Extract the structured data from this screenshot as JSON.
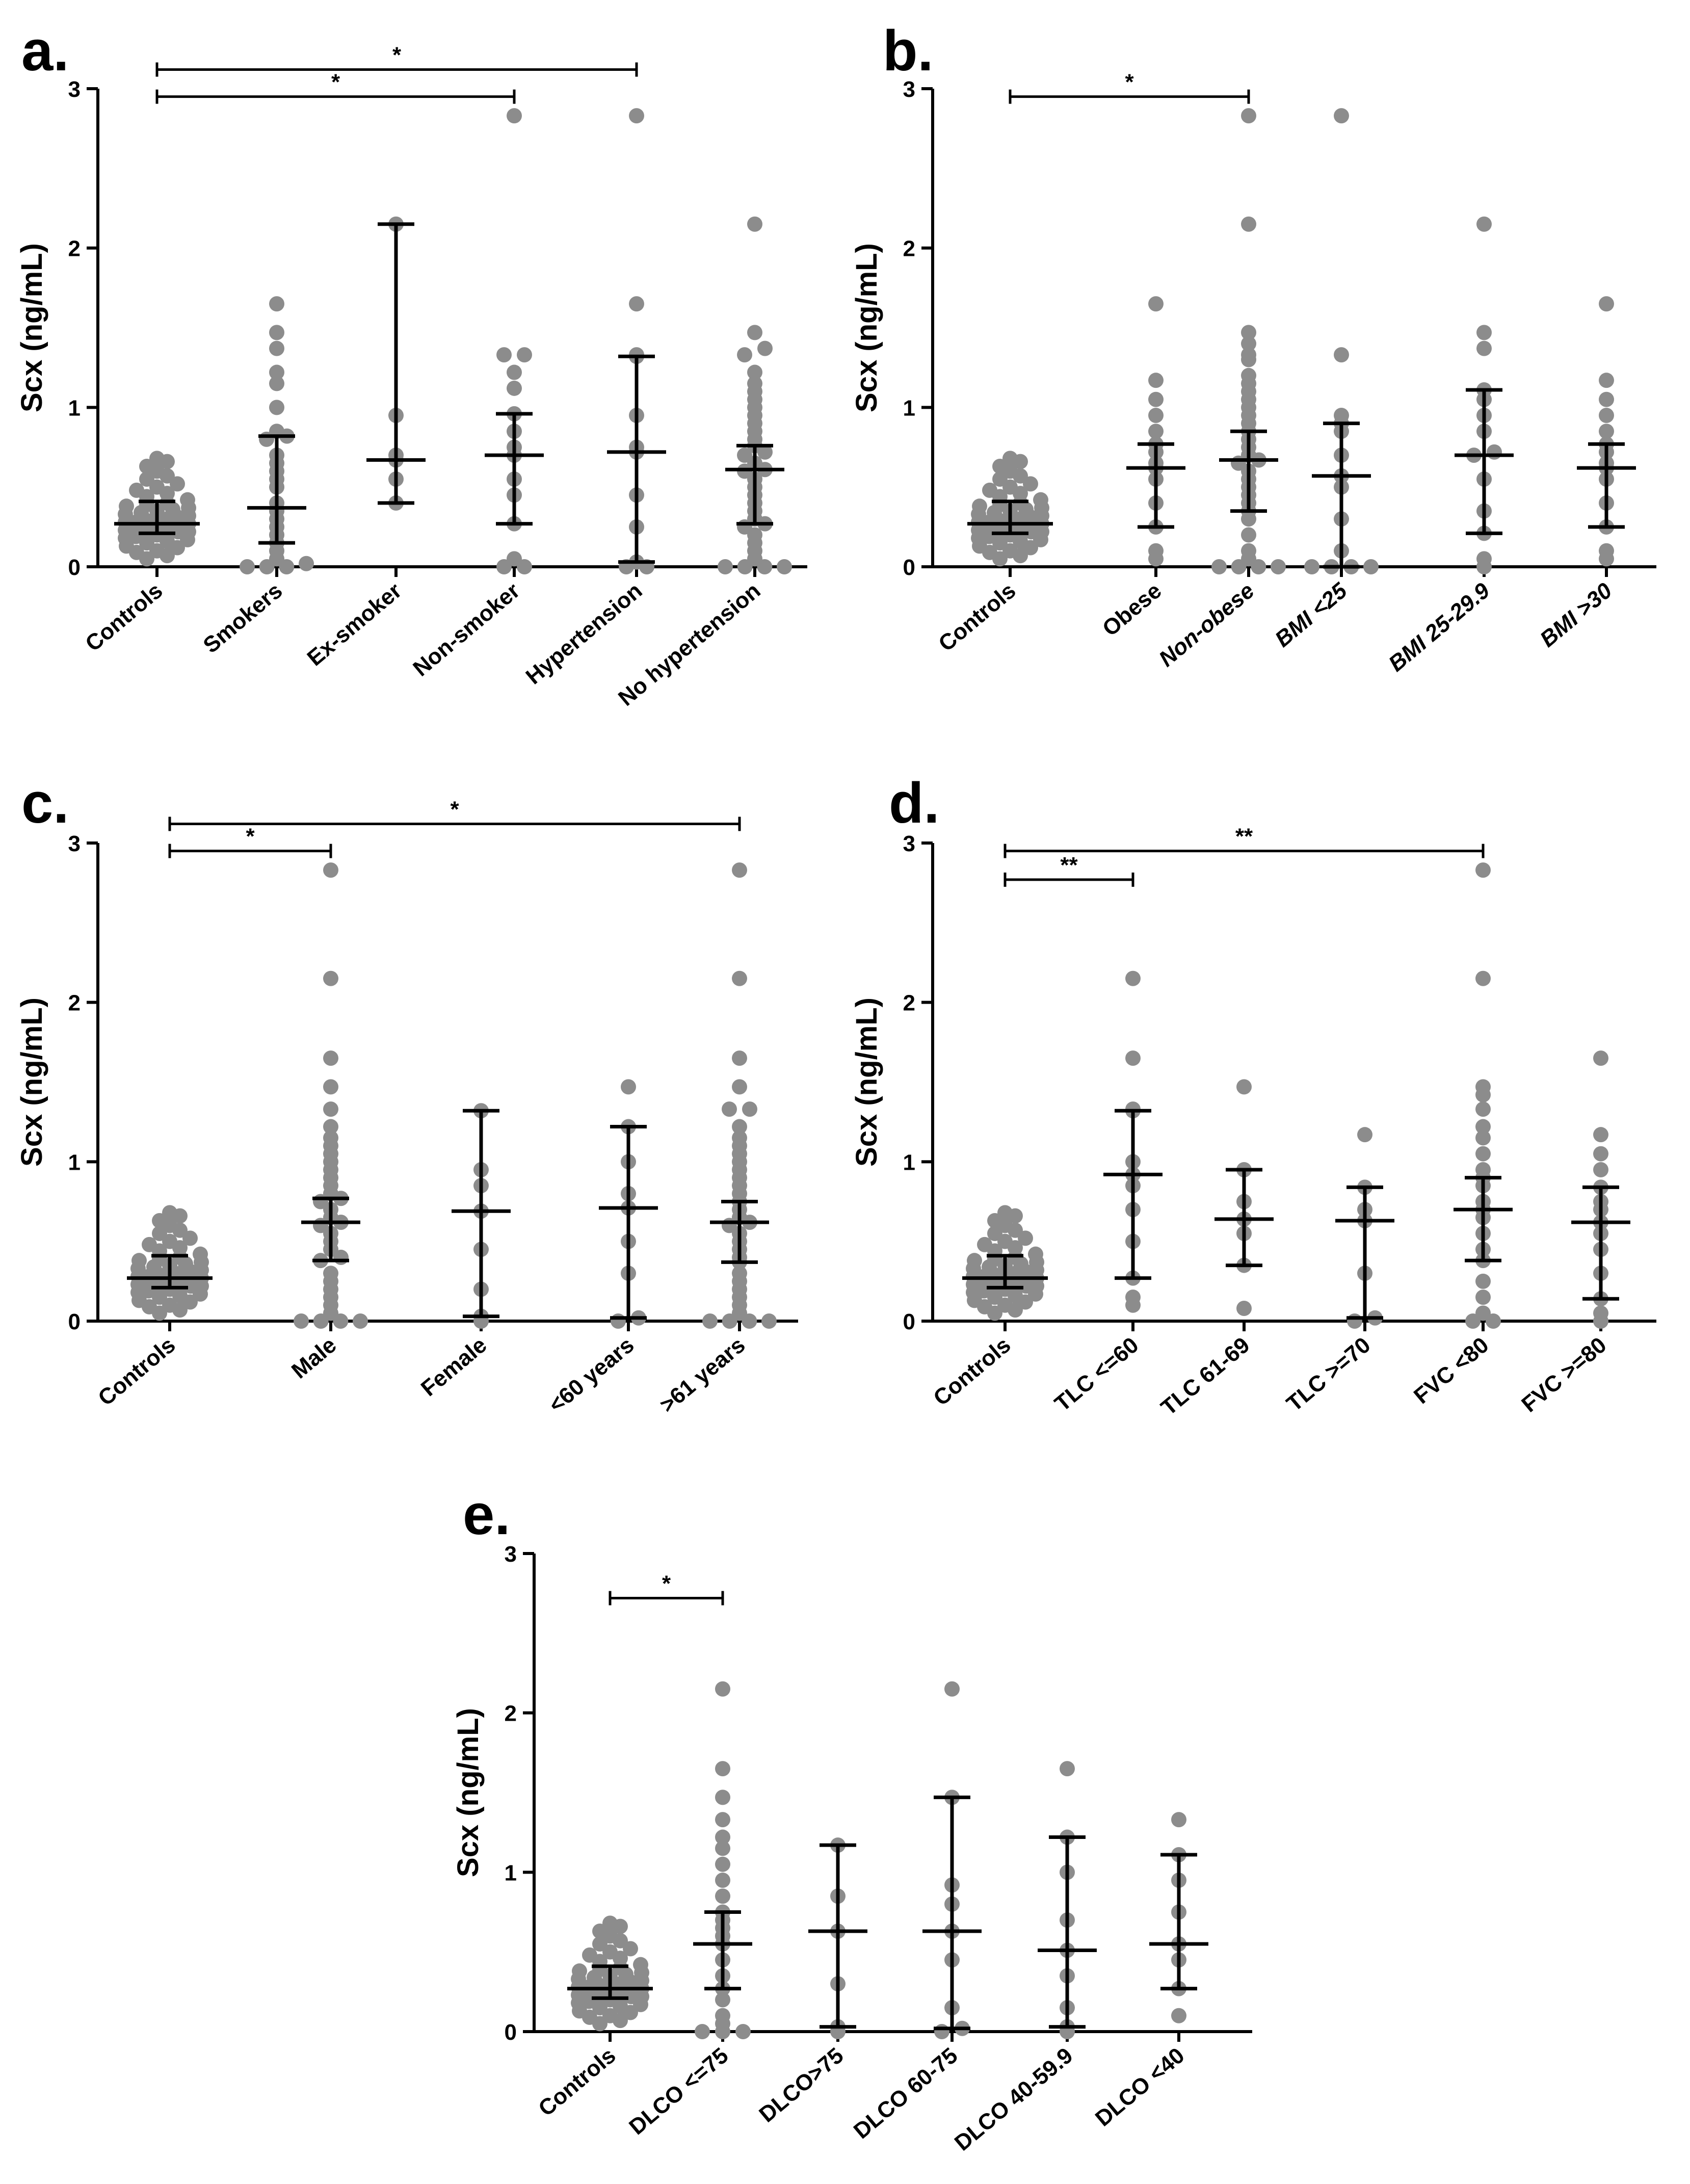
{
  "chart_data": [
    {
      "panel": "a.",
      "type": "scatter",
      "ylabel": "Scx (ng/mL)",
      "ylim": [
        0,
        3
      ],
      "yticks": [
        "0",
        "1",
        "2",
        "3"
      ],
      "categories": [
        "Controls",
        "Smokers",
        "Ex-smoker",
        "Non-smoker",
        "Hypertension",
        "No hypertension"
      ],
      "italic_categories": [],
      "series": [
        {
          "name": "Controls",
          "median": 0.27,
          "q1": 0.21,
          "q3": 0.41,
          "points": [
            0.05,
            0.07,
            0.09,
            0.1,
            0.12,
            0.13,
            0.15,
            0.16,
            0.17,
            0.18,
            0.19,
            0.2,
            0.2,
            0.21,
            0.22,
            0.22,
            0.23,
            0.24,
            0.24,
            0.25,
            0.25,
            0.26,
            0.27,
            0.27,
            0.28,
            0.28,
            0.29,
            0.3,
            0.3,
            0.31,
            0.32,
            0.33,
            0.34,
            0.35,
            0.36,
            0.37,
            0.38,
            0.39,
            0.4,
            0.42,
            0.44,
            0.46,
            0.48,
            0.5,
            0.52,
            0.55,
            0.57,
            0.6,
            0.63,
            0.66,
            0.68
          ]
        },
        {
          "name": "Smokers",
          "median": 0.37,
          "q1": 0.15,
          "q3": 0.82,
          "points": [
            0.0,
            0.0,
            0.0,
            0.02,
            0.05,
            0.1,
            0.15,
            0.2,
            0.25,
            0.3,
            0.35,
            0.4,
            0.5,
            0.55,
            0.6,
            0.65,
            0.7,
            0.8,
            0.82,
            0.85,
            1.0,
            1.15,
            1.22,
            1.37,
            1.47,
            1.65
          ]
        },
        {
          "name": "Ex-smoker",
          "median": 0.67,
          "q1": 0.4,
          "q3": 2.15,
          "points": [
            0.4,
            0.55,
            0.67,
            0.7,
            0.95,
            2.15
          ]
        },
        {
          "name": "Non-smoker",
          "median": 0.7,
          "q1": 0.27,
          "q3": 0.96,
          "points": [
            0.0,
            0.0,
            0.05,
            0.27,
            0.45,
            0.55,
            0.7,
            0.75,
            0.85,
            0.96,
            1.12,
            1.22,
            1.33,
            1.33,
            2.83
          ]
        },
        {
          "name": "Hypertension",
          "median": 0.72,
          "q1": 0.03,
          "q3": 1.32,
          "points": [
            0.0,
            0.0,
            0.03,
            0.25,
            0.45,
            0.72,
            0.75,
            0.95,
            1.32,
            1.33,
            1.65,
            2.83
          ]
        },
        {
          "name": "No hypertension",
          "median": 0.61,
          "q1": 0.27,
          "q3": 0.76,
          "points": [
            0.0,
            0.0,
            0.0,
            0.0,
            0.05,
            0.1,
            0.15,
            0.2,
            0.25,
            0.27,
            0.3,
            0.35,
            0.4,
            0.45,
            0.5,
            0.55,
            0.6,
            0.61,
            0.65,
            0.7,
            0.72,
            0.76,
            0.8,
            0.85,
            0.9,
            0.95,
            1.0,
            1.05,
            1.1,
            1.15,
            1.22,
            1.33,
            1.37,
            1.47,
            2.15
          ]
        }
      ],
      "significance": [
        {
          "from": "Controls",
          "to": "Hypertension",
          "label": "*",
          "y": 3.12
        },
        {
          "from": "Controls",
          "to": "Non-smoker",
          "label": "*",
          "y": 2.95
        }
      ]
    },
    {
      "panel": "b.",
      "type": "scatter",
      "ylabel": "Scx (ng/mL)",
      "ylim": [
        0,
        3
      ],
      "yticks": [
        "0",
        "1",
        "2",
        "3"
      ],
      "categories": [
        "Controls",
        "Obese",
        "Non-obese",
        "BMI <25",
        "BMI 25-29.9",
        "BMI >30"
      ],
      "italic_categories": [
        "Non-obese",
        "BMI <25",
        "BMI 25-29.9",
        "BMI >30"
      ],
      "series": [
        {
          "name": "Controls",
          "median": 0.27,
          "q1": 0.21,
          "q3": 0.41,
          "points": [
            0.05,
            0.07,
            0.09,
            0.1,
            0.12,
            0.13,
            0.15,
            0.16,
            0.17,
            0.18,
            0.19,
            0.2,
            0.2,
            0.21,
            0.22,
            0.22,
            0.23,
            0.24,
            0.24,
            0.25,
            0.25,
            0.26,
            0.27,
            0.27,
            0.28,
            0.28,
            0.29,
            0.3,
            0.3,
            0.31,
            0.32,
            0.33,
            0.34,
            0.35,
            0.36,
            0.37,
            0.38,
            0.39,
            0.4,
            0.42,
            0.44,
            0.46,
            0.48,
            0.5,
            0.52,
            0.55,
            0.57,
            0.6,
            0.63,
            0.66,
            0.68
          ]
        },
        {
          "name": "Obese",
          "median": 0.62,
          "q1": 0.25,
          "q3": 0.77,
          "points": [
            0.05,
            0.1,
            0.25,
            0.4,
            0.55,
            0.62,
            0.65,
            0.72,
            0.77,
            0.85,
            0.95,
            1.05,
            1.17,
            1.65
          ]
        },
        {
          "name": "Non-obese",
          "median": 0.67,
          "q1": 0.35,
          "q3": 0.85,
          "points": [
            0.0,
            0.0,
            0.0,
            0.0,
            0.05,
            0.1,
            0.2,
            0.3,
            0.35,
            0.4,
            0.45,
            0.5,
            0.55,
            0.6,
            0.65,
            0.67,
            0.7,
            0.75,
            0.8,
            0.85,
            0.9,
            0.95,
            1.0,
            1.05,
            1.1,
            1.15,
            1.2,
            1.3,
            1.33,
            1.4,
            1.47,
            2.15,
            2.83
          ]
        },
        {
          "name": "BMI <25",
          "median": 0.57,
          "q1": 0.0,
          "q3": 0.9,
          "points": [
            0.0,
            0.0,
            0.0,
            0.0,
            0.1,
            0.3,
            0.5,
            0.57,
            0.7,
            0.85,
            0.9,
            0.95,
            1.33,
            2.83
          ]
        },
        {
          "name": "BMI 25-29.9",
          "median": 0.7,
          "q1": 0.21,
          "q3": 1.11,
          "points": [
            0.0,
            0.05,
            0.21,
            0.35,
            0.55,
            0.7,
            0.72,
            0.85,
            0.95,
            1.05,
            1.11,
            1.37,
            1.47,
            2.15
          ]
        },
        {
          "name": "BMI >30",
          "median": 0.62,
          "q1": 0.25,
          "q3": 0.77,
          "points": [
            0.05,
            0.1,
            0.25,
            0.4,
            0.55,
            0.62,
            0.65,
            0.72,
            0.77,
            0.85,
            0.95,
            1.05,
            1.17,
            1.65
          ]
        }
      ],
      "significance": [
        {
          "from": "Controls",
          "to": "Non-obese",
          "label": "*",
          "y": 2.95
        }
      ]
    },
    {
      "panel": "c.",
      "type": "scatter",
      "ylabel": "Scx (ng/mL)",
      "ylim": [
        0,
        3
      ],
      "yticks": [
        "0",
        "1",
        "2",
        "3"
      ],
      "categories": [
        "Controls",
        "Male",
        "Female",
        "<60 years",
        ">61 years"
      ],
      "italic_categories": [],
      "series": [
        {
          "name": "Controls",
          "median": 0.27,
          "q1": 0.21,
          "q3": 0.41,
          "points": [
            0.05,
            0.07,
            0.09,
            0.1,
            0.12,
            0.13,
            0.15,
            0.16,
            0.17,
            0.18,
            0.19,
            0.2,
            0.2,
            0.21,
            0.22,
            0.22,
            0.23,
            0.24,
            0.24,
            0.25,
            0.25,
            0.26,
            0.27,
            0.27,
            0.28,
            0.28,
            0.29,
            0.3,
            0.3,
            0.31,
            0.32,
            0.33,
            0.34,
            0.35,
            0.36,
            0.37,
            0.38,
            0.39,
            0.4,
            0.42,
            0.44,
            0.46,
            0.48,
            0.5,
            0.52,
            0.55,
            0.57,
            0.6,
            0.63,
            0.66,
            0.68
          ]
        },
        {
          "name": "Male",
          "median": 0.62,
          "q1": 0.38,
          "q3": 0.77,
          "points": [
            0.0,
            0.0,
            0.0,
            0.0,
            0.05,
            0.1,
            0.15,
            0.2,
            0.25,
            0.3,
            0.38,
            0.4,
            0.45,
            0.5,
            0.55,
            0.6,
            0.62,
            0.65,
            0.7,
            0.75,
            0.77,
            0.8,
            0.85,
            0.9,
            0.95,
            1.0,
            1.05,
            1.1,
            1.15,
            1.22,
            1.33,
            1.47,
            1.65,
            2.15,
            2.83
          ]
        },
        {
          "name": "Female",
          "median": 0.69,
          "q1": 0.03,
          "q3": 1.32,
          "points": [
            0.0,
            0.03,
            0.2,
            0.45,
            0.69,
            0.85,
            0.95,
            1.32
          ]
        },
        {
          "name": "<60 years",
          "median": 0.71,
          "q1": 0.02,
          "q3": 1.22,
          "points": [
            0.0,
            0.02,
            0.3,
            0.5,
            0.71,
            0.8,
            1.0,
            1.22,
            1.47
          ]
        },
        {
          "name": ">61 years",
          "median": 0.62,
          "q1": 0.37,
          "q3": 0.75,
          "points": [
            0.0,
            0.0,
            0.0,
            0.0,
            0.05,
            0.1,
            0.15,
            0.2,
            0.25,
            0.3,
            0.37,
            0.4,
            0.45,
            0.5,
            0.55,
            0.6,
            0.62,
            0.65,
            0.7,
            0.75,
            0.8,
            0.85,
            0.9,
            0.95,
            1.0,
            1.05,
            1.1,
            1.15,
            1.22,
            1.33,
            1.33,
            1.47,
            1.65,
            2.15,
            2.83
          ]
        }
      ],
      "significance": [
        {
          "from": "Controls",
          "to": ">61 years",
          "label": "*",
          "y": 3.12
        },
        {
          "from": "Controls",
          "to": "Male",
          "label": "*",
          "y": 2.95
        }
      ]
    },
    {
      "panel": "d.",
      "type": "scatter",
      "ylabel": "Scx (ng/mL)",
      "ylim": [
        0,
        3
      ],
      "yticks": [
        "0",
        "1",
        "2",
        "3"
      ],
      "categories": [
        "Controls",
        "TLC <=60",
        "TLC 61-69",
        "TLC >=70",
        "FVC <80",
        "FVC >=80"
      ],
      "italic_categories": [],
      "series": [
        {
          "name": "Controls",
          "median": 0.27,
          "q1": 0.21,
          "q3": 0.41,
          "points": [
            0.05,
            0.07,
            0.09,
            0.1,
            0.12,
            0.13,
            0.15,
            0.16,
            0.17,
            0.18,
            0.19,
            0.2,
            0.2,
            0.21,
            0.22,
            0.22,
            0.23,
            0.24,
            0.24,
            0.25,
            0.25,
            0.26,
            0.27,
            0.27,
            0.28,
            0.28,
            0.29,
            0.3,
            0.3,
            0.31,
            0.32,
            0.33,
            0.34,
            0.35,
            0.36,
            0.37,
            0.38,
            0.39,
            0.4,
            0.42,
            0.44,
            0.46,
            0.48,
            0.5,
            0.52,
            0.55,
            0.57,
            0.6,
            0.63,
            0.66,
            0.68
          ]
        },
        {
          "name": "TLC <=60",
          "median": 0.92,
          "q1": 0.27,
          "q3": 1.32,
          "points": [
            0.1,
            0.15,
            0.27,
            0.5,
            0.7,
            0.85,
            0.92,
            1.0,
            1.32,
            1.33,
            1.65,
            2.15
          ]
        },
        {
          "name": "TLC 61-69",
          "median": 0.64,
          "q1": 0.35,
          "q3": 0.95,
          "points": [
            0.08,
            0.35,
            0.55,
            0.64,
            0.75,
            0.95,
            1.47
          ]
        },
        {
          "name": "TLC >=70",
          "median": 0.63,
          "q1": 0.02,
          "q3": 0.84,
          "points": [
            0.0,
            0.02,
            0.3,
            0.63,
            0.7,
            0.84,
            1.17
          ]
        },
        {
          "name": "FVC <80",
          "median": 0.7,
          "q1": 0.38,
          "q3": 0.9,
          "points": [
            0.0,
            0.0,
            0.05,
            0.15,
            0.25,
            0.38,
            0.45,
            0.55,
            0.65,
            0.7,
            0.75,
            0.85,
            0.9,
            0.95,
            1.05,
            1.15,
            1.22,
            1.33,
            1.42,
            1.47,
            2.15,
            2.83
          ]
        },
        {
          "name": "FVC >=80",
          "median": 0.62,
          "q1": 0.14,
          "q3": 0.84,
          "points": [
            0.0,
            0.05,
            0.14,
            0.3,
            0.45,
            0.55,
            0.62,
            0.7,
            0.75,
            0.84,
            0.95,
            1.05,
            1.17,
            1.65
          ]
        }
      ],
      "significance": [
        {
          "from": "Controls",
          "to": "FVC <80",
          "label": "**",
          "y": 2.95
        },
        {
          "from": "Controls",
          "to": "TLC <=60",
          "label": "**",
          "y": 2.77
        }
      ]
    },
    {
      "panel": "e.",
      "type": "scatter",
      "ylabel": "Scx (ng/mL)",
      "ylim": [
        0,
        3
      ],
      "yticks": [
        "0",
        "1",
        "2",
        "3"
      ],
      "categories": [
        "Controls",
        "DLCO <=75",
        "DLCO>75",
        "DLCO 60-75",
        "DLCO 40-59.9",
        "DLCO <40"
      ],
      "italic_categories": [],
      "series": [
        {
          "name": "Controls",
          "median": 0.27,
          "q1": 0.21,
          "q3": 0.41,
          "points": [
            0.05,
            0.07,
            0.09,
            0.1,
            0.12,
            0.13,
            0.15,
            0.16,
            0.17,
            0.18,
            0.19,
            0.2,
            0.2,
            0.21,
            0.22,
            0.22,
            0.23,
            0.24,
            0.24,
            0.25,
            0.25,
            0.26,
            0.27,
            0.27,
            0.28,
            0.28,
            0.29,
            0.3,
            0.3,
            0.31,
            0.32,
            0.33,
            0.34,
            0.35,
            0.36,
            0.37,
            0.38,
            0.39,
            0.4,
            0.42,
            0.44,
            0.46,
            0.48,
            0.5,
            0.52,
            0.55,
            0.57,
            0.6,
            0.63,
            0.66,
            0.68
          ]
        },
        {
          "name": "DLCO <=75",
          "median": 0.55,
          "q1": 0.27,
          "q3": 0.75,
          "points": [
            0.0,
            0.0,
            0.0,
            0.05,
            0.1,
            0.2,
            0.27,
            0.35,
            0.45,
            0.55,
            0.6,
            0.65,
            0.7,
            0.75,
            0.85,
            0.95,
            1.05,
            1.15,
            1.22,
            1.33,
            1.47,
            1.65,
            2.15
          ]
        },
        {
          "name": "DLCO>75",
          "median": 0.63,
          "q1": 0.03,
          "q3": 1.17,
          "points": [
            0.0,
            0.03,
            0.3,
            0.63,
            0.85,
            1.17
          ]
        },
        {
          "name": "DLCO 60-75",
          "median": 0.63,
          "q1": 0.02,
          "q3": 1.47,
          "points": [
            0.0,
            0.02,
            0.15,
            0.45,
            0.63,
            0.8,
            0.92,
            1.47,
            2.15
          ]
        },
        {
          "name": "DLCO 40-59.9",
          "median": 0.51,
          "q1": 0.03,
          "q3": 1.22,
          "points": [
            0.0,
            0.03,
            0.15,
            0.35,
            0.51,
            0.7,
            1.0,
            1.22,
            1.65
          ]
        },
        {
          "name": "DLCO <40",
          "median": 0.55,
          "q1": 0.27,
          "q3": 1.11,
          "points": [
            0.1,
            0.27,
            0.45,
            0.55,
            0.75,
            0.95,
            1.11,
            1.33
          ]
        }
      ],
      "significance": [
        {
          "from": "Controls",
          "to": "DLCO <=75",
          "label": "*",
          "y": 2.72
        }
      ]
    }
  ]
}
